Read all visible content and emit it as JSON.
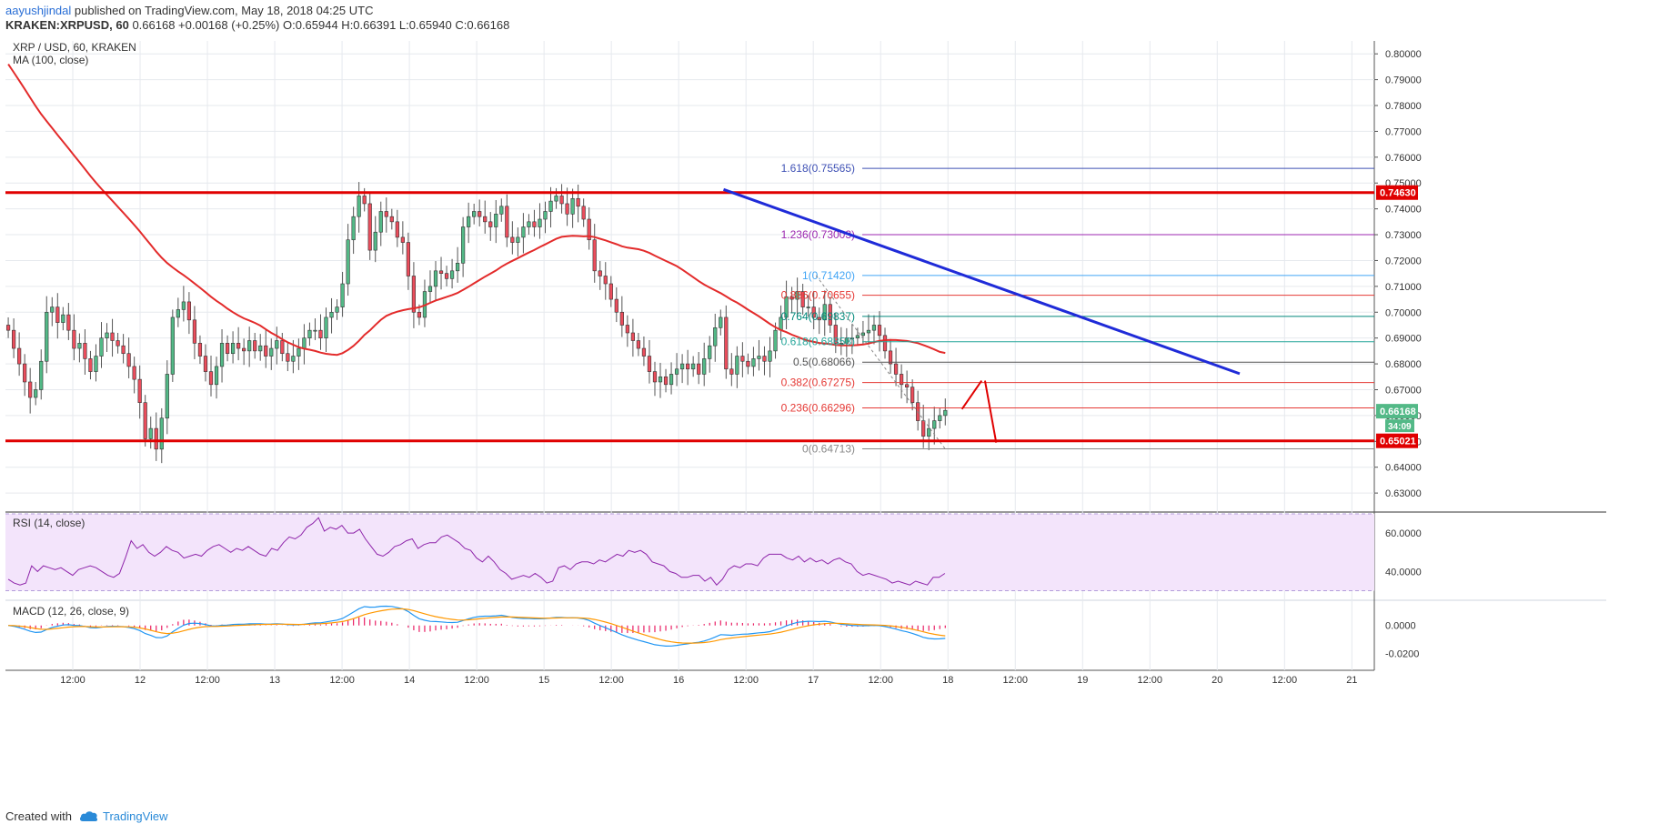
{
  "header": {
    "author": "aayushjindal",
    "published": " published on TradingView.com, May 18, 2018 04:25 UTC",
    "symbol_line": "KRAKEN:XRPUSD, 60",
    "change": "0.66168 +0.00168 (+0.25%)",
    "ohlc": "O:0.65944 H:0.66391 L:0.65940 C:0.66168"
  },
  "footer": {
    "created_with": "Created with",
    "brand": "TradingView"
  },
  "chart_data": {
    "type": "candlestick",
    "title": "XRP / USD, 60, KRAKEN",
    "indicator_label": "MA (100, close)",
    "ylim": [
      0.623,
      0.805
    ],
    "y_ticks": [
      "0.80000",
      "0.79000",
      "0.78000",
      "0.77000",
      "0.76000",
      "0.75000",
      "0.74000",
      "0.73000",
      "0.72000",
      "0.71000",
      "0.70000",
      "0.69000",
      "0.68000",
      "0.67000",
      "0.66000",
      "0.65000",
      "0.64000",
      "0.63000"
    ],
    "y_tick_values": [
      0.8,
      0.79,
      0.78,
      0.77,
      0.76,
      0.75,
      0.74,
      0.73,
      0.72,
      0.71,
      0.7,
      0.69,
      0.68,
      0.67,
      0.66,
      0.65,
      0.64,
      0.63
    ],
    "x_ticks": [
      "12:00",
      "12",
      "12:00",
      "13",
      "12:00",
      "14",
      "12:00",
      "15",
      "12:00",
      "16",
      "12:00",
      "17",
      "12:00",
      "18",
      "12:00",
      "19",
      "12:00",
      "20",
      "12:00",
      "21"
    ],
    "x_tick_hours": [
      12,
      24,
      36,
      48,
      60,
      72,
      84,
      96,
      108,
      120,
      132,
      144,
      156,
      168,
      180,
      192,
      204,
      216,
      228,
      240
    ],
    "x_range_hours": [
      0,
      244
    ],
    "closes": [
      0.693,
      0.686,
      0.68,
      0.673,
      0.667,
      0.67,
      0.681,
      0.7,
      0.702,
      0.696,
      0.699,
      0.693,
      0.686,
      0.688,
      0.682,
      0.677,
      0.683,
      0.69,
      0.692,
      0.689,
      0.687,
      0.684,
      0.679,
      0.674,
      0.665,
      0.651,
      0.655,
      0.647,
      0.659,
      0.676,
      0.698,
      0.701,
      0.704,
      0.697,
      0.688,
      0.683,
      0.677,
      0.672,
      0.679,
      0.688,
      0.684,
      0.688,
      0.686,
      0.685,
      0.689,
      0.685,
      0.687,
      0.683,
      0.686,
      0.689,
      0.684,
      0.681,
      0.683,
      0.686,
      0.69,
      0.693,
      0.693,
      0.69,
      0.698,
      0.7,
      0.702,
      0.711,
      0.728,
      0.737,
      0.745,
      0.742,
      0.724,
      0.731,
      0.739,
      0.737,
      0.735,
      0.729,
      0.727,
      0.714,
      0.7,
      0.698,
      0.708,
      0.71,
      0.716,
      0.715,
      0.713,
      0.716,
      0.719,
      0.733,
      0.737,
      0.739,
      0.737,
      0.735,
      0.733,
      0.738,
      0.741,
      0.729,
      0.727,
      0.729,
      0.733,
      0.735,
      0.733,
      0.736,
      0.739,
      0.743,
      0.745,
      0.742,
      0.738,
      0.744,
      0.741,
      0.736,
      0.728,
      0.716,
      0.714,
      0.711,
      0.705,
      0.7,
      0.695,
      0.692,
      0.689,
      0.686,
      0.683,
      0.677,
      0.673,
      0.675,
      0.672,
      0.676,
      0.678,
      0.68,
      0.678,
      0.68,
      0.676,
      0.682,
      0.687,
      0.694,
      0.698,
      0.678,
      0.676,
      0.683,
      0.681,
      0.679,
      0.682,
      0.683,
      0.681,
      0.685,
      0.693,
      0.698,
      0.706,
      0.705,
      0.708,
      0.702,
      0.702,
      0.698,
      0.697,
      0.703,
      0.695,
      0.688,
      0.688,
      0.69,
      0.69,
      0.691,
      0.692,
      0.693,
      0.695,
      0.691,
      0.685,
      0.68,
      0.676,
      0.672,
      0.671,
      0.665,
      0.658,
      0.652,
      0.655,
      0.658,
      0.66,
      0.662
    ],
    "fib_levels": [
      {
        "label": "1.618(0.75565)",
        "value": 0.75565,
        "color": "#3f51b5"
      },
      {
        "label": "1.236(0.73003)",
        "value": 0.73003,
        "color": "#9c27b0"
      },
      {
        "label": "1(0.71420)",
        "value": 0.7142,
        "color": "#42a5f5"
      },
      {
        "label": "0.886(0.70655)",
        "value": 0.70655,
        "color": "#e53935"
      },
      {
        "label": "0.764(0.69837)",
        "value": 0.69837,
        "color": "#00897b"
      },
      {
        "label": "0.618(0.68858)",
        "value": 0.68858,
        "color": "#26a69a"
      },
      {
        "label": "0.5(0.68066)",
        "value": 0.68066,
        "color": "#555555"
      },
      {
        "label": "0.382(0.67275)",
        "value": 0.67275,
        "color": "#e53935"
      },
      {
        "label": "0.236(0.66296)",
        "value": 0.66296,
        "color": "#e53935"
      },
      {
        "label": "0(0.64713)",
        "value": 0.64713,
        "color": "#888888"
      }
    ],
    "horizontal_levels": [
      {
        "label": "0.74630",
        "value": 0.7463
      },
      {
        "label": "0.65021",
        "value": 0.65021
      }
    ],
    "current_price": {
      "label": "0.66168",
      "value": 0.66168,
      "timer": "34:09"
    },
    "trendline": {
      "from": [
        128,
        0.7475
      ],
      "to": [
        220,
        0.6762
      ]
    },
    "rsi": {
      "label": "RSI (14, close)",
      "ticks": [
        "60.0000",
        "40.0000"
      ],
      "tick_values": [
        60,
        40
      ],
      "range": [
        26,
        70
      ],
      "band": [
        30,
        70
      ],
      "values": [
        36,
        34,
        33,
        34,
        43,
        40,
        43,
        42,
        41,
        42,
        40,
        38,
        41,
        42,
        43,
        42,
        40,
        38,
        37,
        39,
        47,
        56,
        52,
        54,
        50,
        48,
        50,
        53,
        51,
        50,
        47,
        48,
        49,
        48,
        51,
        53,
        54,
        52,
        50,
        52,
        51,
        53,
        51,
        49,
        48,
        52,
        51,
        55,
        58,
        57,
        59,
        63,
        65,
        68,
        61,
        63,
        62,
        64,
        60,
        60,
        62,
        57,
        53,
        49,
        48,
        50,
        53,
        54,
        56,
        57,
        52,
        54,
        55,
        55,
        58,
        59,
        57,
        55,
        52,
        51,
        47,
        45,
        48,
        45,
        41,
        39,
        36,
        37,
        38,
        37,
        39,
        37,
        34,
        35,
        42,
        43,
        41,
        44,
        45,
        45,
        44,
        46,
        45,
        47,
        49,
        48,
        51,
        50,
        51,
        49,
        45,
        44,
        43,
        40,
        39,
        37,
        37,
        38,
        38,
        35,
        37,
        33,
        36,
        41,
        43,
        42,
        44,
        44,
        43,
        47,
        49,
        49,
        49,
        47,
        46,
        48,
        45,
        47,
        45,
        46,
        44,
        46,
        47,
        45,
        44,
        40,
        38,
        39,
        38,
        37,
        36,
        34,
        35,
        34,
        33,
        35,
        34,
        33,
        37,
        37,
        39
      ]
    },
    "macd": {
      "label": "MACD (12, 26, close, 9)",
      "ticks": [
        "0.0000",
        "-0.0200"
      ],
      "tick_values": [
        0,
        -0.02
      ],
      "range": [
        -0.032,
        0.018
      ]
    }
  }
}
